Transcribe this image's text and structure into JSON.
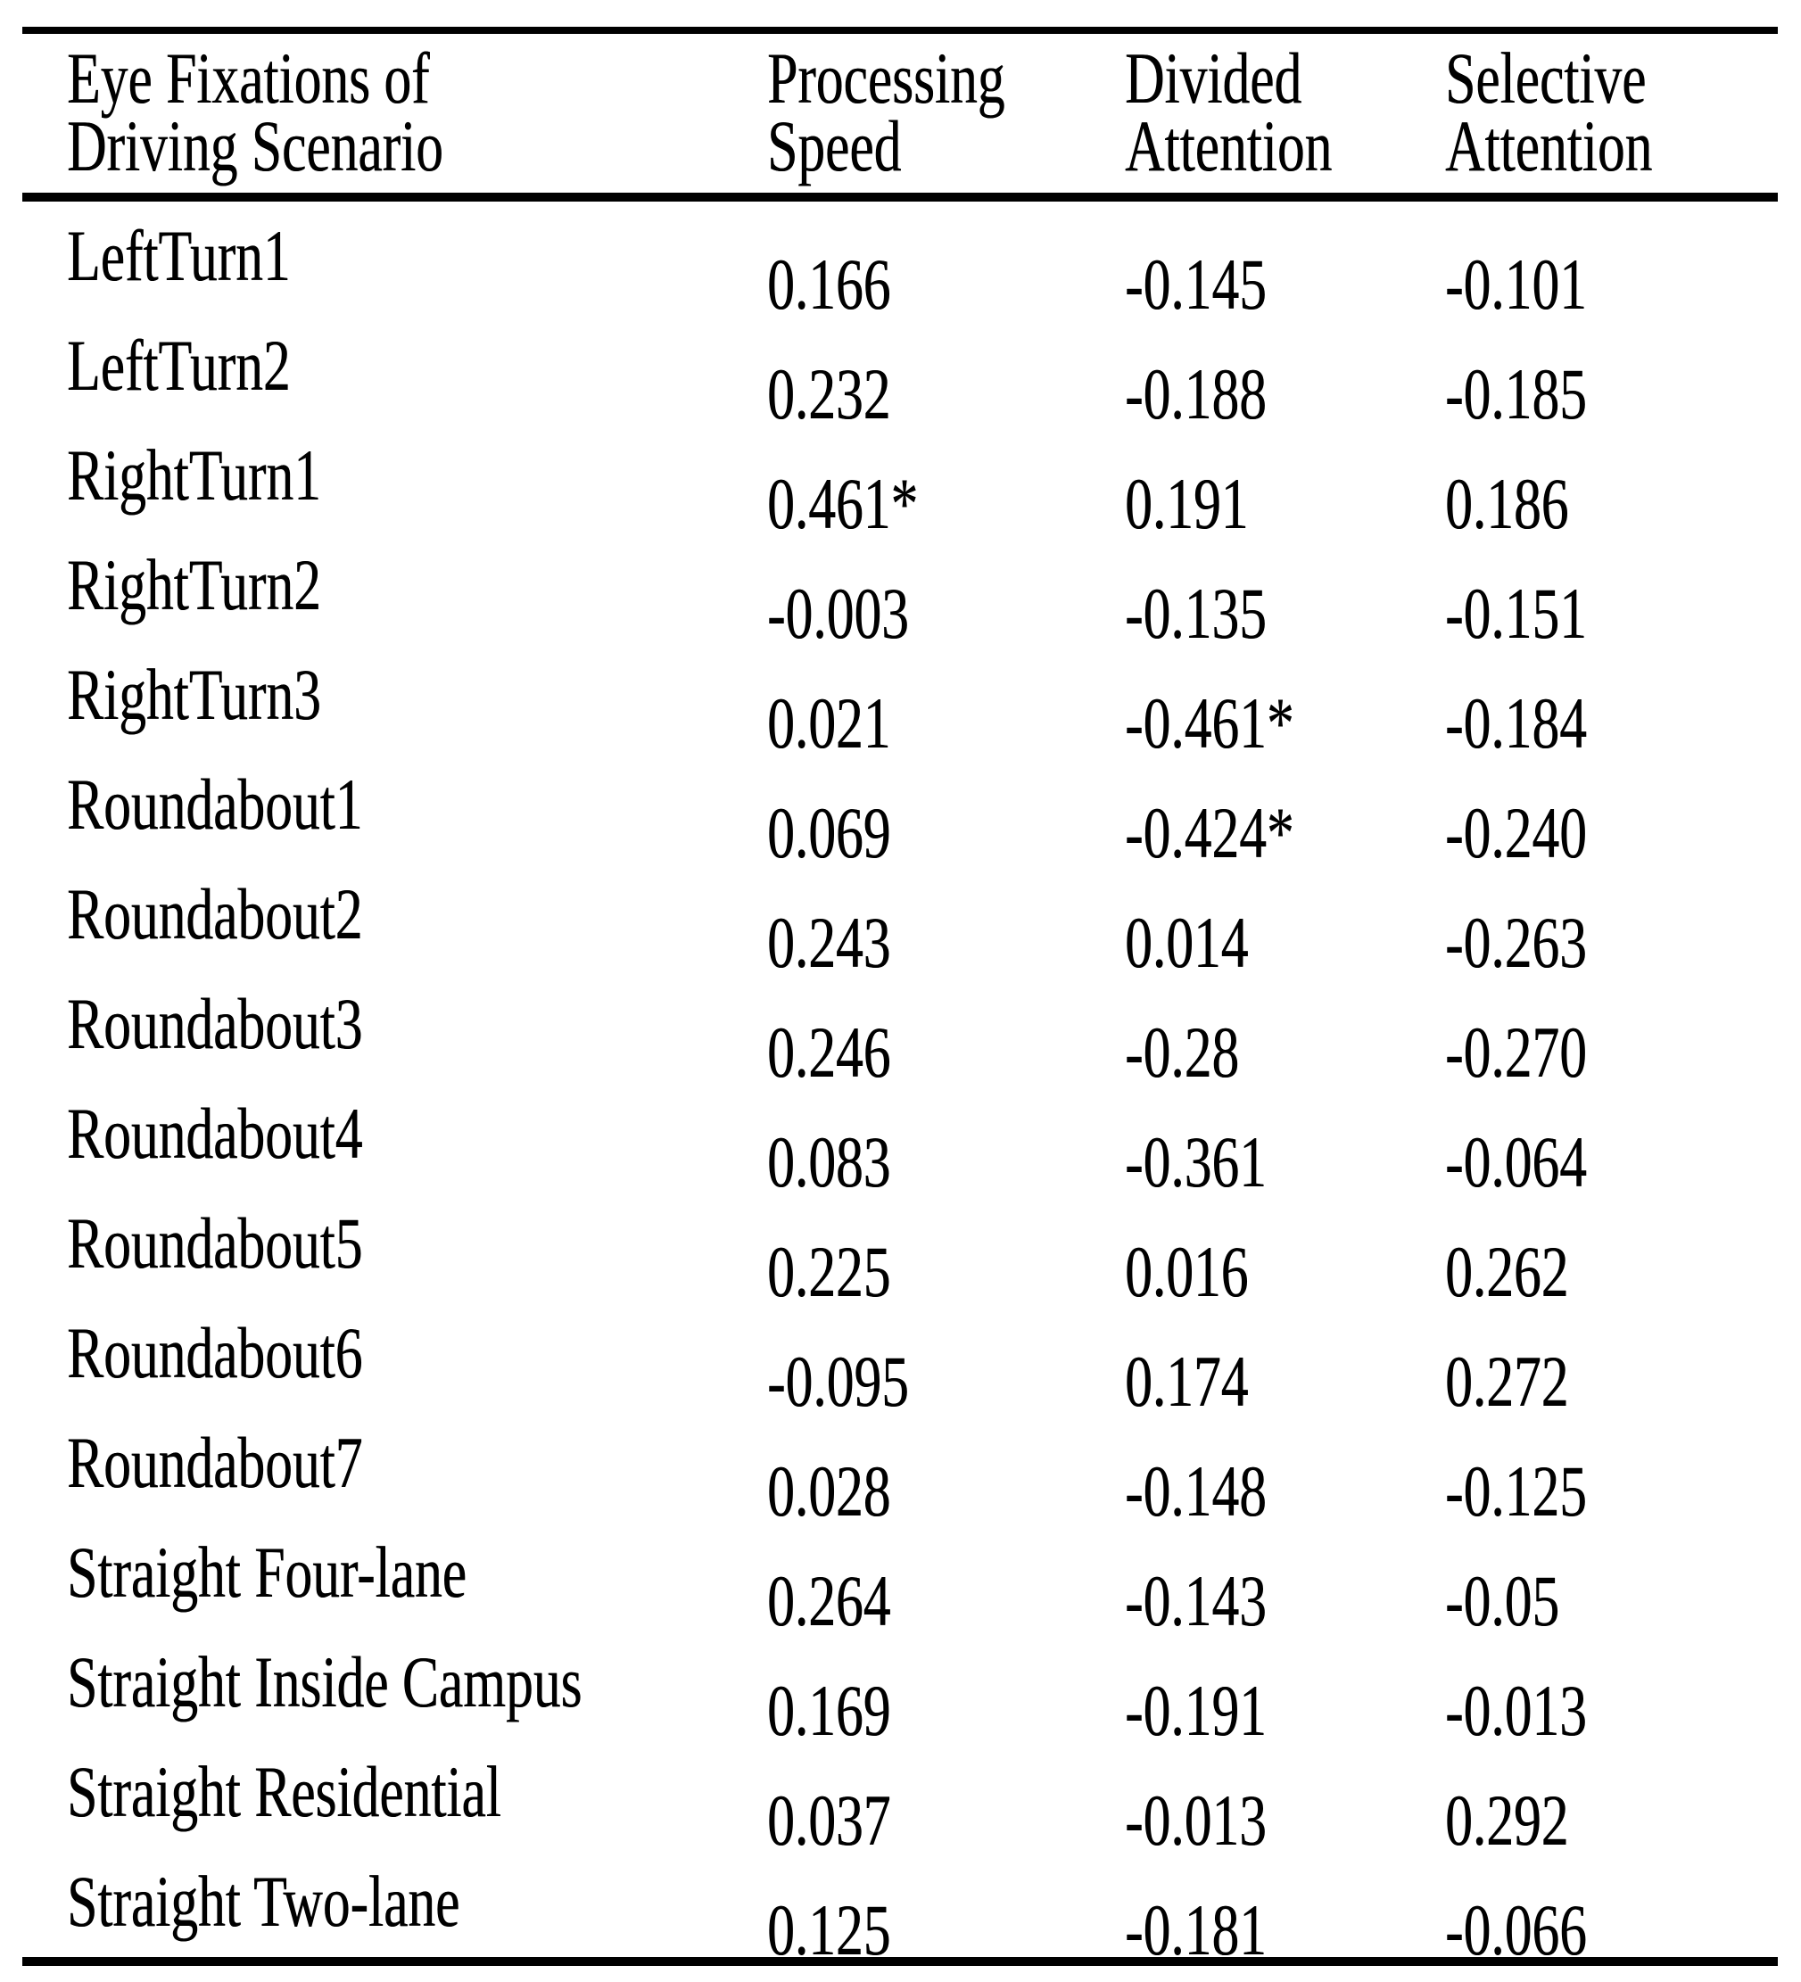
{
  "table": {
    "header": {
      "scenario": [
        "Eye Fixations of",
        "Driving Scenario"
      ],
      "processing_speed": [
        "Processing",
        "Speed"
      ],
      "divided_attention": [
        "Divided",
        "Attention"
      ],
      "selective_attention": [
        "Selective",
        "Attention"
      ]
    },
    "rows": [
      {
        "label": "LeftTurn1",
        "processing_speed": "0.166",
        "divided_attention": "-0.145",
        "selective_attention": "-0.101"
      },
      {
        "label": "LeftTurn2",
        "processing_speed": "0.232",
        "divided_attention": "-0.188",
        "selective_attention": "-0.185"
      },
      {
        "label": "RightTurn1",
        "processing_speed": "0.461*",
        "divided_attention": "0.191",
        "selective_attention": "0.186"
      },
      {
        "label": "RightTurn2",
        "processing_speed": "-0.003",
        "divided_attention": "-0.135",
        "selective_attention": "-0.151"
      },
      {
        "label": "RightTurn3",
        "processing_speed": "0.021",
        "divided_attention": "-0.461*",
        "selective_attention": "-0.184"
      },
      {
        "label": "Roundabout1",
        "processing_speed": "0.069",
        "divided_attention": "-0.424*",
        "selective_attention": "-0.240"
      },
      {
        "label": "Roundabout2",
        "processing_speed": "0.243",
        "divided_attention": "0.014",
        "selective_attention": "-0.263"
      },
      {
        "label": "Roundabout3",
        "processing_speed": "0.246",
        "divided_attention": "-0.28",
        "selective_attention": "-0.270"
      },
      {
        "label": "Roundabout4",
        "processing_speed": "0.083",
        "divided_attention": "-0.361",
        "selective_attention": "-0.064"
      },
      {
        "label": "Roundabout5",
        "processing_speed": "0.225",
        "divided_attention": "0.016",
        "selective_attention": "0.262"
      },
      {
        "label": "Roundabout6",
        "processing_speed": "-0.095",
        "divided_attention": "0.174",
        "selective_attention": "0.272"
      },
      {
        "label": "Roundabout7",
        "processing_speed": "0.028",
        "divided_attention": "-0.148",
        "selective_attention": "-0.125"
      },
      {
        "label": "Straight Four-lane",
        "processing_speed": "0.264",
        "divided_attention": "-0.143",
        "selective_attention": "-0.05"
      },
      {
        "label": "Straight Inside Campus",
        "processing_speed": "0.169",
        "divided_attention": "-0.191",
        "selective_attention": "-0.013"
      },
      {
        "label": "Straight Residential",
        "processing_speed": "0.037",
        "divided_attention": "-0.013",
        "selective_attention": "0.292"
      },
      {
        "label": "Straight Two-lane",
        "processing_speed": "0.125",
        "divided_attention": "-0.181",
        "selective_attention": "-0.066"
      }
    ]
  },
  "chart_data": {
    "type": "table",
    "title": "Correlations of eye fixations of driving scenario with attention measures",
    "columns": [
      "Eye Fixations of Driving Scenario",
      "Processing Speed",
      "Divided Attention",
      "Selective Attention"
    ],
    "rows": [
      [
        "LeftTurn1",
        "0.166",
        "-0.145",
        "-0.101"
      ],
      [
        "LeftTurn2",
        "0.232",
        "-0.188",
        "-0.185"
      ],
      [
        "RightTurn1",
        "0.461*",
        "0.191",
        "0.186"
      ],
      [
        "RightTurn2",
        "-0.003",
        "-0.135",
        "-0.151"
      ],
      [
        "RightTurn3",
        "0.021",
        "-0.461*",
        "-0.184"
      ],
      [
        "Roundabout1",
        "0.069",
        "-0.424*",
        "-0.240"
      ],
      [
        "Roundabout2",
        "0.243",
        "0.014",
        "-0.263"
      ],
      [
        "Roundabout3",
        "0.246",
        "-0.28",
        "-0.270"
      ],
      [
        "Roundabout4",
        "0.083",
        "-0.361",
        "-0.064"
      ],
      [
        "Roundabout5",
        "0.225",
        "0.016",
        "0.262"
      ],
      [
        "Roundabout6",
        "-0.095",
        "0.174",
        "0.272"
      ],
      [
        "Roundabout7",
        "0.028",
        "-0.148",
        "-0.125"
      ],
      [
        "Straight Four-lane",
        "0.264",
        "-0.143",
        "-0.05"
      ],
      [
        "Straight Inside Campus",
        "0.169",
        "-0.191",
        "-0.013"
      ],
      [
        "Straight Residential",
        "0.037",
        "-0.013",
        "0.292"
      ],
      [
        "Straight Two-lane",
        "0.125",
        "-0.181",
        "-0.066"
      ]
    ],
    "colors": {
      "text": "#000000",
      "background": "#ffffff",
      "rule": "#000000"
    },
    "layout": {
      "rules": [
        "top",
        "below-header",
        "bottom"
      ],
      "column_alignment": "left",
      "significant_marker": "*"
    }
  }
}
